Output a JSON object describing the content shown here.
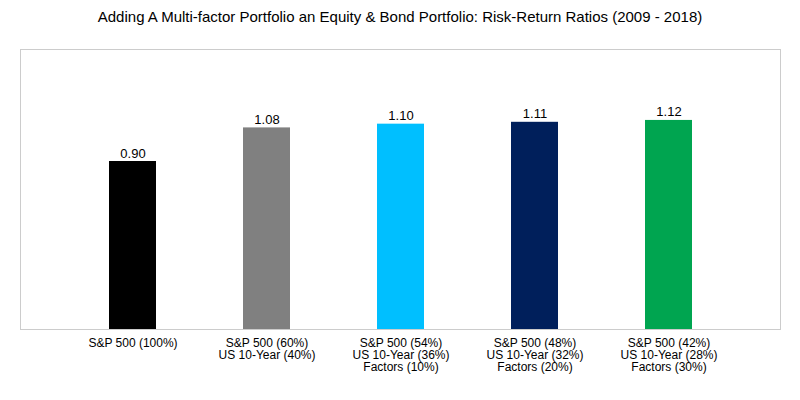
{
  "chart_data": {
    "type": "bar",
    "title": "Adding A Multi-factor Portfolio an Equity & Bond Portfolio: Risk-Return Ratios (2009 - 2018)",
    "categories": [
      "S&P 500 (100%)",
      "S&P 500 (60%)\nUS 10-Year (40%)",
      "S&P 500 (54%)\nUS 10-Year (36%)\nFactors (10%)",
      "S&P 500 (48%)\nUS 10-Year (32%)\nFactors (20%)",
      "S&P 500 (42%)\nUS 10-Year (28%)\nFactors (30%)"
    ],
    "values": [
      0.9,
      1.08,
      1.1,
      1.11,
      1.12
    ],
    "value_labels": [
      "0.90",
      "1.08",
      "1.10",
      "1.11",
      "1.12"
    ],
    "colors": [
      "#000000",
      "#808080",
      "#00BFFF",
      "#001F5B",
      "#00A550"
    ],
    "ylim": [
      0,
      1.5
    ],
    "grid": false,
    "data_labels": true,
    "tick_labels": "x"
  }
}
